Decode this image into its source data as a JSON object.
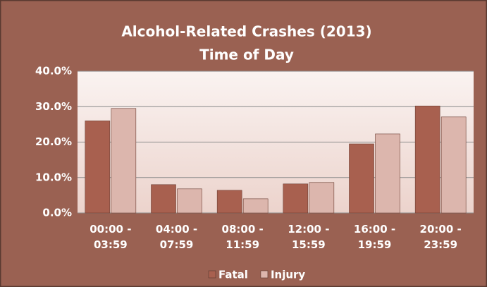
{
  "chart_data": {
    "type": "bar",
    "title": "Alcohol-Related Crashes (2013)",
    "subtitle": "Time of Day",
    "categories": [
      "00:00 - 03:59",
      "04:00 - 07:59",
      "08:00 - 11:59",
      "12:00 - 15:59",
      "16:00 - 19:59",
      "20:00 - 23:59"
    ],
    "series": [
      {
        "name": "Fatal",
        "color": "#a8604f",
        "values": [
          26.0,
          8.0,
          6.4,
          8.2,
          19.5,
          30.2
        ]
      },
      {
        "name": "Injury",
        "color": "#dcb6ad",
        "values": [
          29.5,
          6.8,
          4.0,
          8.6,
          22.3,
          27.1
        ]
      }
    ],
    "ylim": [
      0,
      40
    ],
    "yticks": [
      {
        "value": 0,
        "label": "0.0%"
      },
      {
        "value": 10,
        "label": "10.0%"
      },
      {
        "value": 20,
        "label": "20.0%"
      },
      {
        "value": 30,
        "label": "30.0%"
      },
      {
        "value": 40,
        "label": "40.0%"
      }
    ],
    "grid": true,
    "legend": "bottom"
  }
}
